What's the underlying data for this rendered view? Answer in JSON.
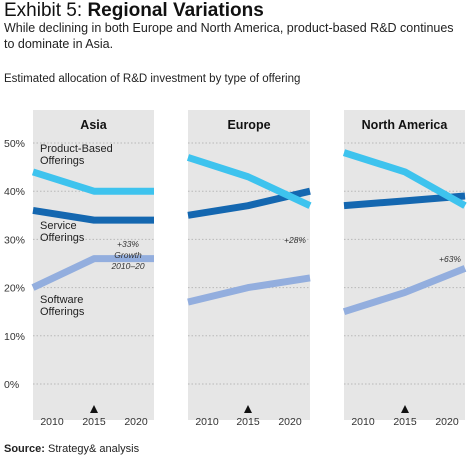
{
  "header": {
    "exhibit_prefix": "Exhibit 5: ",
    "exhibit_title": "Regional Variations",
    "subtitle": "While declining in both Europe and North America, product-based R&D continues to dominate in Asia.",
    "chart_caption": "Estimated allocation of R&D investment by type of offering"
  },
  "footer": {
    "source_label": "Source:",
    "source_text": " Strategy& analysis"
  },
  "colors": {
    "panel_bg": "#e6e6e6",
    "gridline": "#b8b8b8",
    "product": "#3ec3ee",
    "service": "#1467b0",
    "software": "#93aede",
    "marker": "#111111"
  },
  "chart_data": {
    "type": "line",
    "x": [
      "2010",
      "2015",
      "2020"
    ],
    "marker_at": "2015",
    "ylim": [
      0,
      50
    ],
    "yticks": [
      0,
      10,
      20,
      30,
      40,
      50
    ],
    "ytick_labels": [
      "0%",
      "10%",
      "20%",
      "30%",
      "40%",
      "50%"
    ],
    "grid": true,
    "panels": [
      {
        "title": "Asia",
        "series": [
          {
            "key": "product",
            "values": [
              44,
              40,
              40
            ]
          },
          {
            "key": "service",
            "values": [
              36,
              34,
              34
            ]
          },
          {
            "key": "software",
            "values": [
              20,
              26,
              26
            ]
          }
        ],
        "series_labels": [
          {
            "key": "product",
            "lines": [
              "Product-Based",
              "Offerings"
            ]
          },
          {
            "key": "service",
            "lines": [
              "Service",
              "Offerings"
            ]
          },
          {
            "key": "software",
            "lines": [
              "Software",
              "Offerings"
            ]
          }
        ],
        "annotation": [
          "+33%",
          "Growth",
          "2010–20"
        ]
      },
      {
        "title": "Europe",
        "series": [
          {
            "key": "product",
            "values": [
              47,
              43,
              37
            ]
          },
          {
            "key": "service",
            "values": [
              35,
              37,
              40
            ]
          },
          {
            "key": "software",
            "values": [
              17,
              20,
              22
            ]
          }
        ],
        "annotation": [
          "+28%"
        ]
      },
      {
        "title": "North America",
        "series": [
          {
            "key": "product",
            "values": [
              48,
              44,
              37
            ]
          },
          {
            "key": "service",
            "values": [
              37,
              38,
              39
            ]
          },
          {
            "key": "software",
            "values": [
              15,
              19,
              24
            ]
          }
        ],
        "annotation": [
          "+63%"
        ]
      }
    ]
  }
}
